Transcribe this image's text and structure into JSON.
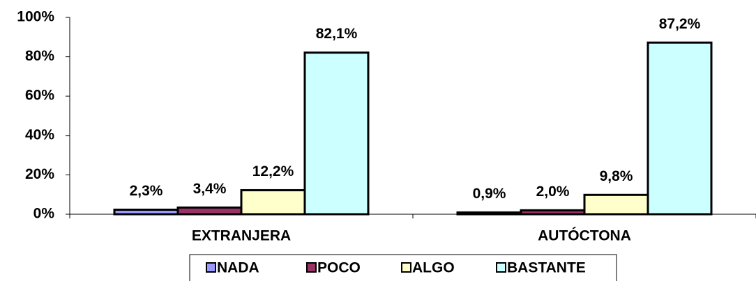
{
  "chart_data": {
    "type": "bar",
    "categories": [
      "EXTRANJERA",
      "AUTÓCTONA"
    ],
    "series": [
      {
        "name": "NADA",
        "color": "#9999ff",
        "values": [
          2.3,
          0.9
        ],
        "value_labels": [
          "2,3%",
          "0,9%"
        ]
      },
      {
        "name": "POCO",
        "color": "#993366",
        "values": [
          3.4,
          2.0
        ],
        "value_labels": [
          "3,4%",
          "2,0%"
        ]
      },
      {
        "name": "ALGO",
        "color": "#ffffcc",
        "values": [
          12.2,
          9.8
        ],
        "value_labels": [
          "12,2%",
          "9,8%"
        ]
      },
      {
        "name": "BASTANTE",
        "color": "#ccffff",
        "values": [
          82.1,
          87.2
        ],
        "value_labels": [
          "82,1%",
          "87,2%"
        ]
      }
    ],
    "ylim": [
      0,
      100
    ],
    "yticks": [
      {
        "value": 0,
        "label": "0%"
      },
      {
        "value": 20,
        "label": "20%"
      },
      {
        "value": 40,
        "label": "40%"
      },
      {
        "value": 60,
        "label": "60%"
      },
      {
        "value": 80,
        "label": "80%"
      },
      {
        "value": 100,
        "label": "100%"
      }
    ],
    "grid": false,
    "legend": "bottom"
  }
}
